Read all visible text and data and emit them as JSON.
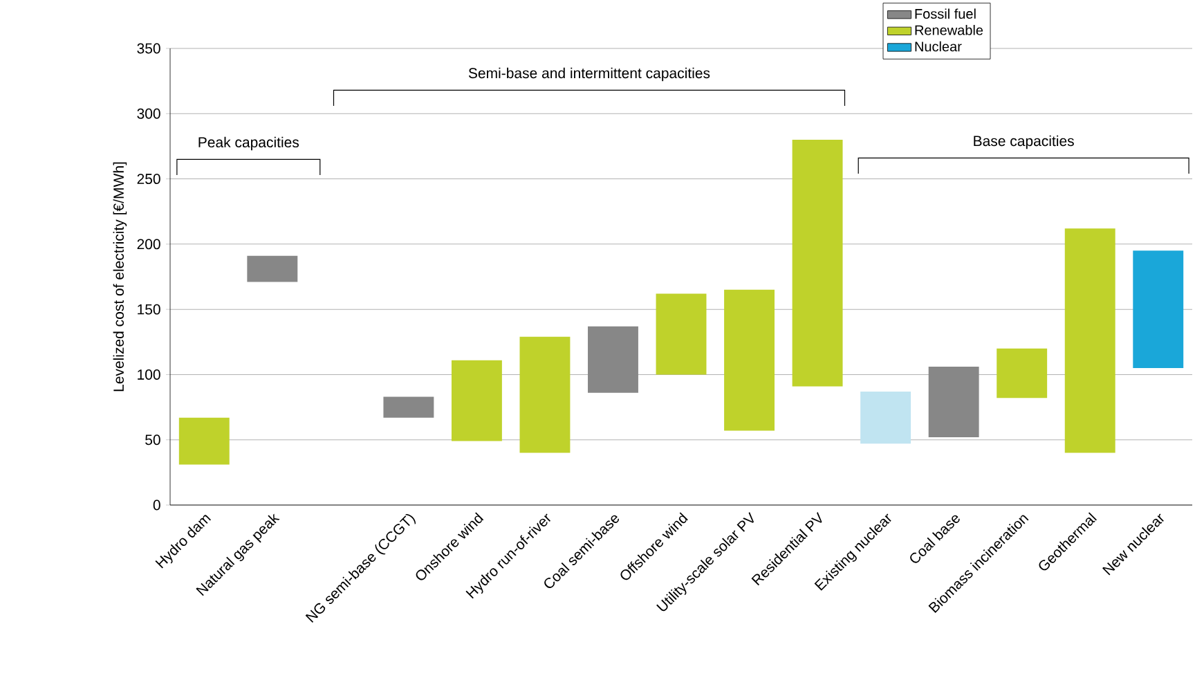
{
  "chart_data": {
    "type": "bar",
    "ylabel": "Levelized cost of electricity [€/MWh]",
    "categories": [
      "Hydro dam",
      "Natural gas peak",
      null,
      "NG semi-base (CCGT)",
      "Onshore wind",
      "Hydro run-of-river",
      "Coal semi-base",
      "Offshore wind",
      "Utility-scale solar PV",
      "Residential PV",
      "Existing nuclear",
      "Coal base",
      "Biomass incineration",
      "Geothermal",
      "New nuclear"
    ],
    "series": [
      {
        "name": "Fossil fuel",
        "color": "#878787",
        "values": [
          null,
          20,
          null,
          16,
          null,
          null,
          51,
          null,
          null,
          null,
          null,
          54,
          null,
          null,
          null
        ],
        "base": [
          null,
          171,
          null,
          67,
          null,
          null,
          86,
          null,
          null,
          null,
          null,
          52,
          null,
          null,
          null
        ]
      },
      {
        "name": "Renewable",
        "color": "#bfd22b",
        "values": [
          36,
          null,
          null,
          null,
          62,
          89,
          null,
          62,
          108,
          189,
          null,
          null,
          38,
          172,
          null
        ],
        "base": [
          31,
          null,
          null,
          null,
          49,
          40,
          null,
          100,
          57,
          91,
          null,
          null,
          82,
          40,
          null
        ]
      },
      {
        "name": "Nuclear",
        "color": "#1aa7d9",
        "colors": [
          null,
          null,
          null,
          null,
          null,
          null,
          null,
          null,
          null,
          null,
          "#c0e4f1",
          null,
          null,
          null,
          "#1aa7d9"
        ],
        "values": [
          null,
          null,
          null,
          null,
          null,
          null,
          null,
          null,
          null,
          null,
          40,
          null,
          null,
          null,
          90
        ],
        "base": [
          null,
          null,
          null,
          null,
          null,
          null,
          null,
          null,
          null,
          null,
          47,
          null,
          null,
          null,
          105
        ]
      }
    ],
    "annotations": [
      "Peak capacities",
      "Semi-base and intermittent capacities",
      "Base capacities"
    ],
    "ylim": [
      0,
      350
    ],
    "yticks": [
      0,
      50,
      100,
      150,
      200,
      250,
      300,
      350
    ],
    "grid": "y",
    "legend": "top right"
  }
}
